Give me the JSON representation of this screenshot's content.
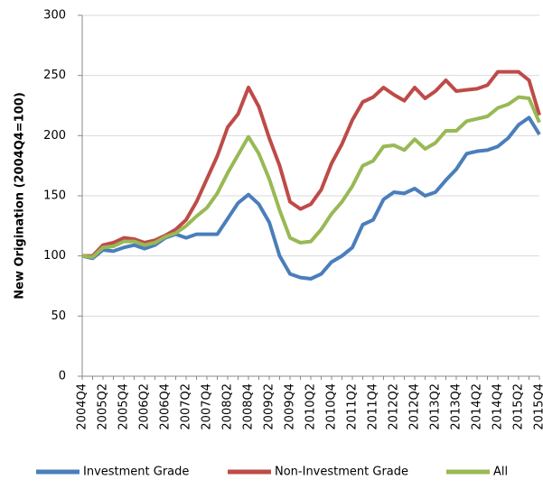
{
  "chart_data": {
    "type": "line",
    "y_label": "New Origination (2004Q4=100)",
    "categories": [
      "2004Q4",
      null,
      "2005Q2",
      null,
      "2005Q4",
      null,
      "2006Q2",
      null,
      "2006Q4",
      null,
      "2007Q2",
      null,
      "2007Q4",
      null,
      "2008Q2",
      null,
      "2008Q4",
      null,
      "2009Q2",
      null,
      "2009Q4",
      null,
      "2010Q2",
      null,
      "2010Q4",
      null,
      "2011Q2",
      null,
      "2011Q4",
      null,
      "2012Q2",
      null,
      "2012Q4",
      null,
      "2013Q2",
      null,
      "2013Q4",
      null,
      "2014Q2",
      null,
      "2014Q4",
      null,
      "2015Q2",
      null,
      "2015Q4"
    ],
    "series": [
      {
        "name": "Investment Grade",
        "color": "#4a7ebb",
        "values": [
          100,
          98,
          105,
          104,
          107,
          109,
          106,
          109,
          115,
          118,
          115,
          118,
          118,
          118,
          131,
          144,
          151,
          143,
          128,
          100,
          85,
          82,
          81,
          85,
          95,
          100,
          107,
          126,
          130,
          147,
          153,
          152,
          156,
          150,
          153,
          163,
          172,
          185,
          187,
          188,
          191,
          198,
          209,
          215,
          201
        ]
      },
      {
        "name": "Non-Investment Grade",
        "color": "#be4b48",
        "values": [
          100,
          100,
          109,
          111,
          115,
          114,
          111,
          113,
          117,
          122,
          130,
          145,
          164,
          183,
          207,
          218,
          240,
          224,
          198,
          175,
          145,
          139,
          143,
          155,
          177,
          193,
          213,
          228,
          232,
          240,
          234,
          229,
          240,
          231,
          237,
          246,
          237,
          238,
          239,
          242,
          253,
          253,
          253,
          246,
          217
        ]
      },
      {
        "name": "All",
        "color": "#98b954",
        "values": [
          100,
          99,
          107,
          108,
          112,
          112,
          109,
          111,
          116,
          119,
          125,
          133,
          140,
          152,
          169,
          184,
          199,
          185,
          164,
          138,
          115,
          111,
          112,
          122,
          135,
          145,
          158,
          175,
          179,
          191,
          192,
          188,
          197,
          189,
          194,
          204,
          204,
          212,
          214,
          216,
          223,
          226,
          232,
          231,
          211
        ]
      }
    ],
    "ylim": [
      0,
      300
    ],
    "yticks": [
      0,
      50,
      100,
      150,
      200,
      250,
      300
    ],
    "grid": true,
    "legend": "bottom"
  }
}
